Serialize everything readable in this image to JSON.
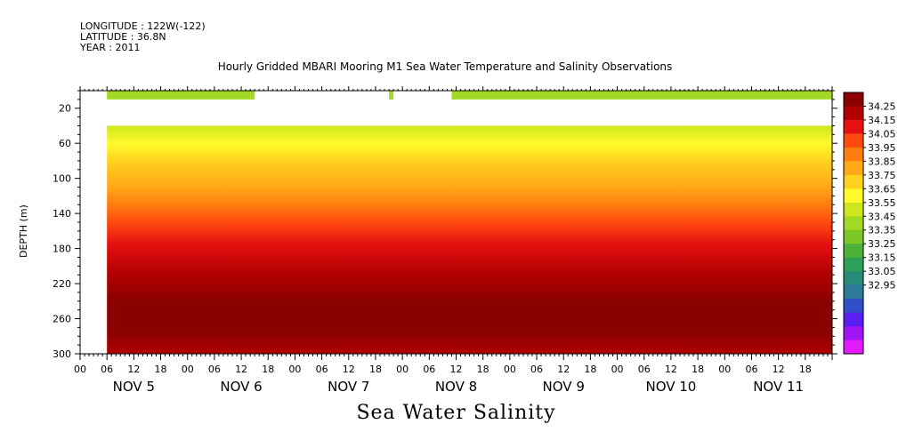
{
  "header": {
    "longitude": "LONGITUDE : 122W(-122)",
    "latitude": "LATITUDE : 36.8N",
    "year": "YEAR : 2011"
  },
  "chart_data": {
    "type": "heatmap",
    "title": "Hourly Gridded MBARI Mooring M1 Sea Water Temperature and Salinity Observations",
    "bottom_title": "Sea Water Salinity",
    "ylabel": "DEPTH (m)",
    "xlabel": "",
    "ylim": [
      300,
      0
    ],
    "yticks": [
      20,
      60,
      100,
      140,
      180,
      220,
      260,
      300
    ],
    "xlim_hours": [
      0,
      168
    ],
    "xtick_hour_labels": [
      "00",
      "06",
      "12",
      "18",
      "00",
      "06",
      "12",
      "18",
      "00",
      "06",
      "12",
      "18",
      "00",
      "06",
      "12",
      "18",
      "00",
      "06",
      "12",
      "18",
      "00",
      "06",
      "12",
      "18",
      "00",
      "06",
      "12",
      "18"
    ],
    "day_labels": [
      "NOV  5",
      "NOV  6",
      "NOV  7",
      "NOV  8",
      "NOV  9",
      "NOV 10",
      "NOV 11"
    ],
    "colorbar_levels": [
      34.25,
      34.15,
      34.05,
      33.95,
      33.85,
      33.75,
      33.65,
      33.55,
      33.45,
      33.35,
      33.25,
      33.15,
      33.05,
      32.95
    ],
    "colorbar_colors": [
      "#8b0000",
      "#b00000",
      "#e61010",
      "#ff4a10",
      "#ff7d10",
      "#ffa818",
      "#ffd21e",
      "#fffa2a",
      "#cde61e",
      "#a3d824",
      "#7cc82a",
      "#4eb23a",
      "#2ea058",
      "#2a8a78",
      "#2c7a98",
      "#3150c8",
      "#5a1ef0",
      "#a014f5",
      "#e01cff"
    ],
    "depth_profile": [
      {
        "depth": 0,
        "salinity": 33.35
      },
      {
        "depth": 10,
        "salinity": 33.35
      },
      {
        "depth": 40,
        "salinity": 33.45
      },
      {
        "depth": 60,
        "salinity": 33.55
      },
      {
        "depth": 80,
        "salinity": 33.65
      },
      {
        "depth": 110,
        "salinity": 33.75
      },
      {
        "depth": 130,
        "salinity": 33.85
      },
      {
        "depth": 150,
        "salinity": 33.95
      },
      {
        "depth": 175,
        "salinity": 34.05
      },
      {
        "depth": 210,
        "salinity": 34.15
      },
      {
        "depth": 240,
        "salinity": 34.25
      },
      {
        "depth": 275,
        "salinity": 34.25
      },
      {
        "depth": 300,
        "salinity": 34.15
      }
    ],
    "surface_segments": [
      {
        "start_hour": 6,
        "end_hour": 39
      },
      {
        "start_hour": 69,
        "end_hour": 70
      },
      {
        "start_hour": 83,
        "end_hour": 168
      }
    ],
    "data_gap_depth_range": [
      10,
      40
    ]
  }
}
